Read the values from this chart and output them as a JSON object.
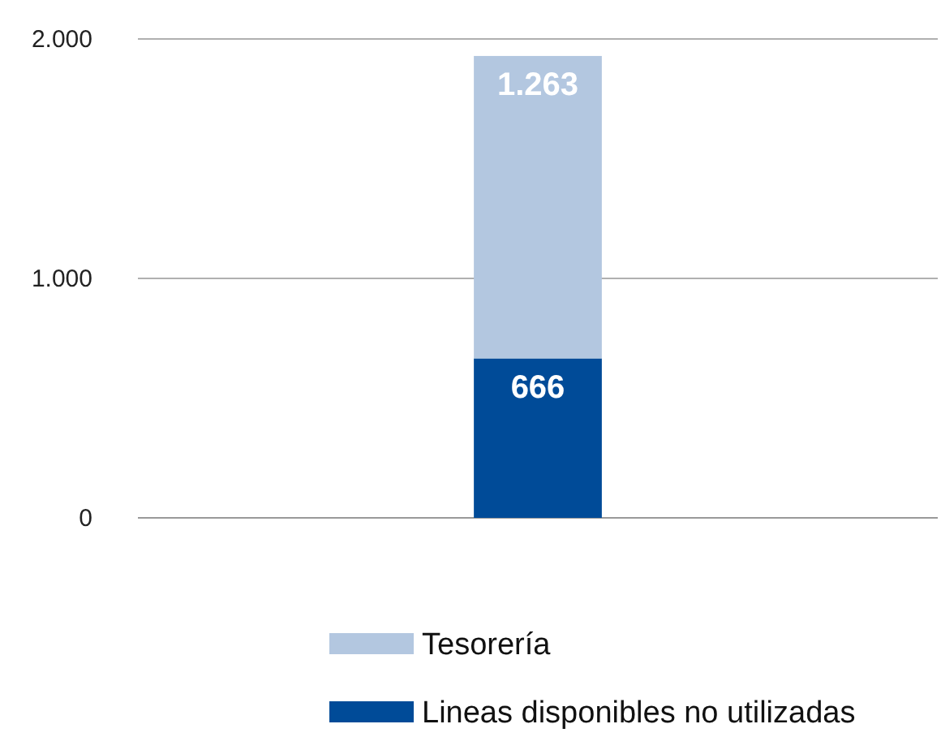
{
  "chart_data": {
    "type": "bar",
    "stacked": true,
    "categories": [
      null
    ],
    "series": [
      {
        "name": "Lineas disponibles no utilizadas",
        "color": "#004b98",
        "values": [
          666
        ],
        "value_labels": [
          "666"
        ]
      },
      {
        "name": "Tesorería",
        "color": "#b3c7e0",
        "values": [
          1263
        ],
        "value_labels": [
          "1.263"
        ]
      }
    ],
    "ylim": [
      0,
      2000
    ],
    "yticks": [
      {
        "value": 0,
        "label": "0"
      },
      {
        "value": 1000,
        "label": "1.000"
      },
      {
        "value": 2000,
        "label": "2.000"
      }
    ],
    "grid": "y",
    "legend": "bottom"
  }
}
